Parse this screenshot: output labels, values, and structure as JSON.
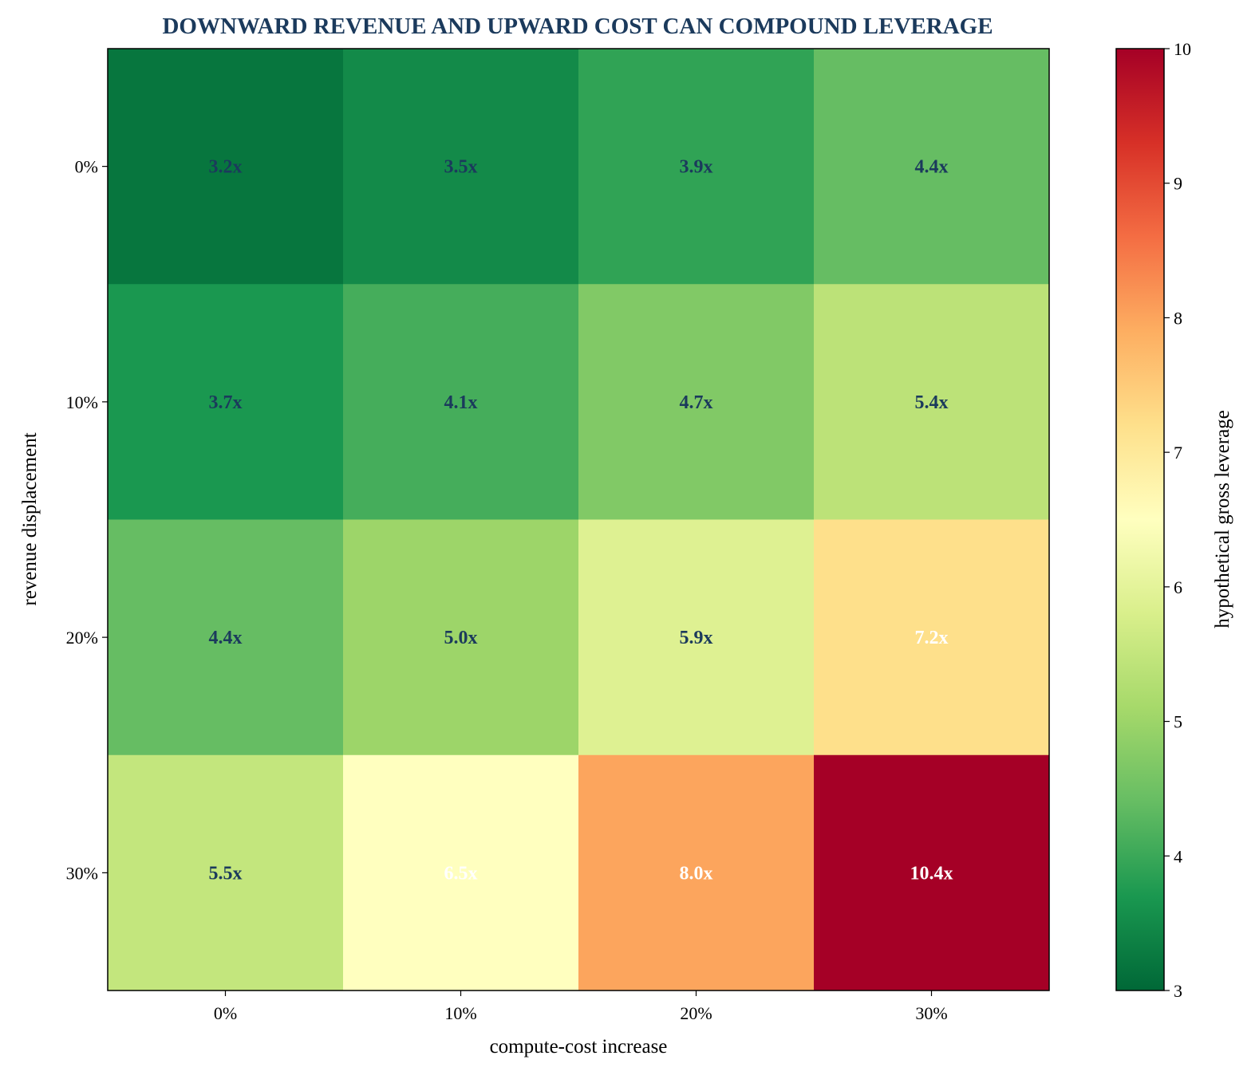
{
  "chart_data": {
    "type": "heatmap",
    "title": "DOWNWARD REVENUE AND UPWARD COST CAN COMPOUND LEVERAGE",
    "xlabel": "compute-cost increase",
    "ylabel": "revenue displacement",
    "x_categories": [
      "0%",
      "10%",
      "20%",
      "30%"
    ],
    "y_categories": [
      "0%",
      "10%",
      "20%",
      "30%"
    ],
    "values": [
      [
        3.2,
        3.5,
        3.9,
        4.4
      ],
      [
        3.7,
        4.1,
        4.7,
        5.4
      ],
      [
        4.4,
        5.0,
        5.9,
        7.2
      ],
      [
        5.5,
        6.5,
        8.0,
        10.4
      ]
    ],
    "cell_labels": [
      [
        "3.2x",
        "3.5x",
        "3.9x",
        "4.4x"
      ],
      [
        "3.7x",
        "4.1x",
        "4.7x",
        "5.4x"
      ],
      [
        "4.4x",
        "5.0x",
        "5.9x",
        "7.2x"
      ],
      [
        "5.5x",
        "6.5x",
        "8.0x",
        "10.4x"
      ]
    ],
    "colorbar": {
      "label": "hypothetical gross leverage",
      "range": [
        3,
        10
      ],
      "ticks": [
        "3",
        "4",
        "5",
        "6",
        "7",
        "8",
        "9",
        "10"
      ],
      "colormap": "RdYlGn_r"
    },
    "colors": {
      "title": "#1b3a5c",
      "label_dark": "#1b3a5c",
      "label_light": "#ffffff"
    }
  }
}
